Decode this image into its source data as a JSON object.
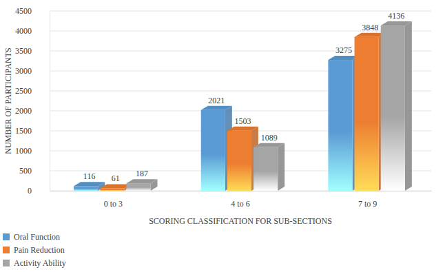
{
  "chart_data": {
    "type": "bar",
    "categories": [
      "0 to 3",
      "4 to 6",
      "7 to 9"
    ],
    "series": [
      {
        "name": "Oral Function",
        "color": "#5b9bd5",
        "values": [
          116,
          2021,
          3275
        ]
      },
      {
        "name": "Pain Reduction",
        "color": "#ed7d31",
        "values": [
          61,
          1503,
          3848
        ]
      },
      {
        "name": "Activity Ability",
        "color": "#a5a5a5",
        "values": [
          187,
          1089,
          4136
        ]
      }
    ],
    "x_label": "SCORING CLASSIFICATION FOR SUB-SECTIONS",
    "y_label": "NUMBER OF PARTICIPANTS",
    "ylim": [
      0,
      4500
    ],
    "yticks": [
      0,
      500,
      1000,
      1500,
      2000,
      2500,
      3000,
      3500,
      4000,
      4500
    ],
    "grid": true,
    "data_labels": true,
    "legend": "bottom-left"
  }
}
